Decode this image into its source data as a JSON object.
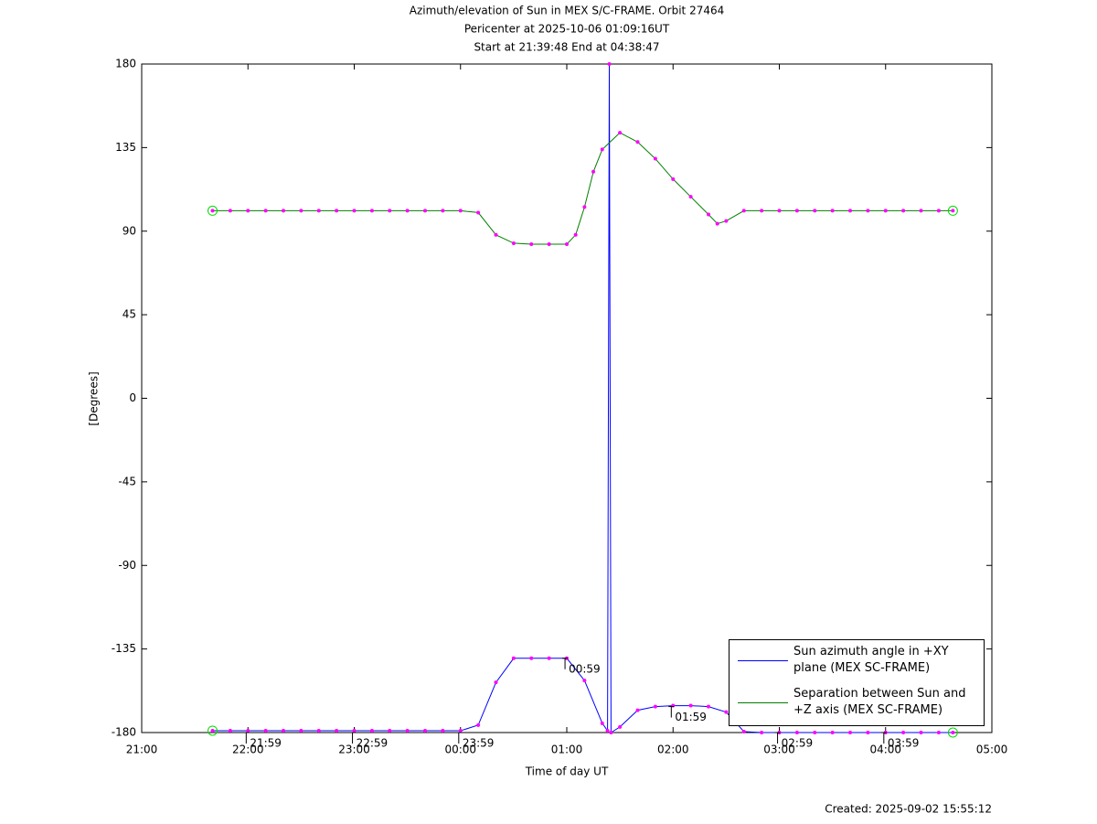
{
  "chart_data": {
    "type": "line",
    "title": "Azimuth/elevation of Sun in MEX S/C-FRAME.  Orbit 27464",
    "subtitle": "Pericenter at 2025-10-06 01:09:16UT",
    "subtitle2": "Start at 21:39:48 End at 04:38:47",
    "x_label": "Time of day UT",
    "y_label": "[Degrees]",
    "footer": "Created: 2025-09-02 15:55:12",
    "xlim": [
      "21:00",
      "05:00"
    ],
    "xticks": [
      "21:00",
      "22:00",
      "23:00",
      "00:00",
      "01:00",
      "02:00",
      "03:00",
      "04:00",
      "05:00"
    ],
    "ylim": [
      -180,
      180
    ],
    "yticks": [
      180,
      135,
      90,
      45,
      0,
      -45,
      -90,
      -135,
      -180
    ],
    "marker_color": "#ff00ff",
    "series": [
      {
        "name": "Sun azimuth angle in +XY plane (MEX SC-FRAME)",
        "color": "#0000ff",
        "x": [
          "21:40",
          "21:50",
          "22:00",
          "22:10",
          "22:20",
          "22:30",
          "22:40",
          "22:50",
          "23:00",
          "23:10",
          "23:20",
          "23:30",
          "23:40",
          "23:50",
          "00:00",
          "00:10",
          "00:20",
          "00:30",
          "00:40",
          "00:50",
          "01:00",
          "01:10",
          "01:20",
          "01:23",
          "01:24",
          "01:25",
          "01:30",
          "01:40",
          "01:50",
          "02:00",
          "02:10",
          "02:20",
          "02:30",
          "02:40",
          "02:50",
          "03:00",
          "03:10",
          "03:20",
          "03:30",
          "03:40",
          "03:50",
          "04:00",
          "04:10",
          "04:20",
          "04:30",
          "04:38"
        ],
        "values": [
          -179,
          -179,
          -179,
          -179,
          -179,
          -179,
          -179,
          -179,
          -179,
          -179,
          -179,
          -179,
          -179,
          -179,
          -179,
          -176,
          -153,
          -140,
          -140,
          -140,
          -140,
          -152,
          -175,
          -179,
          180,
          -180,
          -177,
          -168,
          -166,
          -165.5,
          -165.5,
          -166,
          -169,
          -179.5,
          -180,
          -180,
          -180,
          -180,
          -180,
          -180,
          -180,
          -180,
          -180,
          -180,
          -180,
          -180
        ]
      },
      {
        "name": "Separation between Sun and +Z axis (MEX SC-FRAME)",
        "color": "#008000",
        "x": [
          "21:40",
          "21:50",
          "22:00",
          "22:10",
          "22:20",
          "22:30",
          "22:40",
          "22:50",
          "23:00",
          "23:10",
          "23:20",
          "23:30",
          "23:40",
          "23:50",
          "00:00",
          "00:10",
          "00:20",
          "00:30",
          "00:40",
          "00:50",
          "01:00",
          "01:05",
          "01:10",
          "01:15",
          "01:20",
          "01:30",
          "01:40",
          "01:50",
          "02:00",
          "02:10",
          "02:20",
          "02:25",
          "02:30",
          "02:40",
          "02:50",
          "03:00",
          "03:10",
          "03:20",
          "03:30",
          "03:40",
          "03:50",
          "04:00",
          "04:10",
          "04:20",
          "04:30",
          "04:38"
        ],
        "values": [
          101,
          101,
          101,
          101,
          101,
          101,
          101,
          101,
          101,
          101,
          101,
          101,
          101,
          101,
          101,
          100,
          88,
          83.5,
          83,
          83,
          83,
          88,
          103,
          122,
          134,
          143,
          138,
          129,
          118,
          108.5,
          99,
          94,
          95.5,
          101,
          101,
          101,
          101,
          101,
          101,
          101,
          101,
          101,
          101,
          101,
          101,
          101
        ]
      }
    ],
    "annotations": [
      {
        "text": "21:59",
        "x": "21:59",
        "y": -180
      },
      {
        "text": "22:59",
        "x": "22:59",
        "y": -180
      },
      {
        "text": "23:59",
        "x": "23:59",
        "y": -180
      },
      {
        "text": "00:59",
        "x": "00:59",
        "y": -140
      },
      {
        "text": "01:59",
        "x": "01:59",
        "y": -166
      },
      {
        "text": "02:59",
        "x": "02:59",
        "y": -180
      },
      {
        "text": "03:59",
        "x": "03:59",
        "y": -180
      }
    ]
  }
}
